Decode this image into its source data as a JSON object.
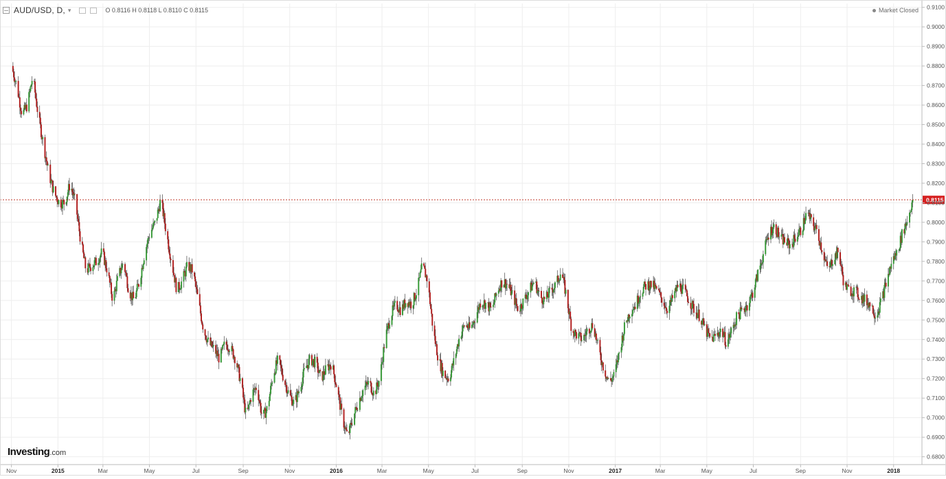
{
  "header": {
    "symbol": "AUD/USD, D,",
    "dropdown": "▾",
    "ohlc": "O 0.8116 H 0.8118 L 0.8110 C 0.8115"
  },
  "status": {
    "market": "Market Closed"
  },
  "logo": {
    "brand": "Investing",
    "suffix": ".com"
  },
  "price_tag": "0.8115",
  "colors": {
    "up": "#3a9b3a",
    "down": "#b22222",
    "wick": "#444444",
    "price_line": "#c0392b",
    "price_tag_bg": "#d62020",
    "grid": "#eeeeee",
    "axis": "#bbbbbb"
  },
  "chart_data": {
    "type": "candlestick",
    "title": "AUD/USD, D,",
    "ylim": [
      0.676,
      0.912
    ],
    "y_scale_side": "right",
    "y_ticks": [
      "0.9100",
      "0.9000",
      "0.8900",
      "0.8800",
      "0.8700",
      "0.8600",
      "0.8500",
      "0.8400",
      "0.8300",
      "0.8200",
      "0.8100",
      "0.8000",
      "0.7900",
      "0.7800",
      "0.7700",
      "0.7600",
      "0.7500",
      "0.7400",
      "0.7300",
      "0.7200",
      "0.7100",
      "0.7000",
      "0.6900",
      "0.6800"
    ],
    "x_ticks": [
      "Nov",
      "2015",
      "Mar",
      "May",
      "Jul",
      "Sep",
      "Nov",
      "2016",
      "Mar",
      "May",
      "Jul",
      "Sep",
      "Nov",
      "2017",
      "Mar",
      "May",
      "Jul",
      "Sep",
      "Nov",
      "2018"
    ],
    "grid": true,
    "last_price": 0.8115,
    "path_points": [
      [
        "2014-11-01",
        0.88
      ],
      [
        "2014-11-08",
        0.87
      ],
      [
        "2014-11-15",
        0.855
      ],
      [
        "2014-11-22",
        0.86
      ],
      [
        "2014-11-29",
        0.875
      ],
      [
        "2014-12-06",
        0.855
      ],
      [
        "2014-12-13",
        0.84
      ],
      [
        "2014-12-20",
        0.825
      ],
      [
        "2014-12-27",
        0.815
      ],
      [
        "2015-01-03",
        0.81
      ],
      [
        "2015-01-10",
        0.81
      ],
      [
        "2015-01-17",
        0.82
      ],
      [
        "2015-01-24",
        0.81
      ],
      [
        "2015-01-31",
        0.79
      ],
      [
        "2015-02-07",
        0.775
      ],
      [
        "2015-02-14",
        0.778
      ],
      [
        "2015-02-21",
        0.78
      ],
      [
        "2015-02-28",
        0.785
      ],
      [
        "2015-03-07",
        0.775
      ],
      [
        "2015-03-14",
        0.76
      ],
      [
        "2015-03-21",
        0.772
      ],
      [
        "2015-03-28",
        0.78
      ],
      [
        "2015-04-04",
        0.765
      ],
      [
        "2015-04-11",
        0.76
      ],
      [
        "2015-04-18",
        0.77
      ],
      [
        "2015-04-25",
        0.785
      ],
      [
        "2015-05-02",
        0.795
      ],
      [
        "2015-05-09",
        0.8
      ],
      [
        "2015-05-16",
        0.812
      ],
      [
        "2015-05-23",
        0.795
      ],
      [
        "2015-05-30",
        0.78
      ],
      [
        "2015-06-06",
        0.765
      ],
      [
        "2015-06-13",
        0.77
      ],
      [
        "2015-06-20",
        0.778
      ],
      [
        "2015-06-27",
        0.775
      ],
      [
        "2015-07-04",
        0.76
      ],
      [
        "2015-07-11",
        0.745
      ],
      [
        "2015-07-18",
        0.738
      ],
      [
        "2015-07-25",
        0.735
      ],
      [
        "2015-08-01",
        0.73
      ],
      [
        "2015-08-08",
        0.738
      ],
      [
        "2015-08-15",
        0.736
      ],
      [
        "2015-08-22",
        0.73
      ],
      [
        "2015-08-29",
        0.718
      ],
      [
        "2015-09-05",
        0.7
      ],
      [
        "2015-09-12",
        0.712
      ],
      [
        "2015-09-19",
        0.716
      ],
      [
        "2015-09-26",
        0.7
      ],
      [
        "2015-10-03",
        0.705
      ],
      [
        "2015-10-10",
        0.722
      ],
      [
        "2015-10-17",
        0.73
      ],
      [
        "2015-10-24",
        0.72
      ],
      [
        "2015-10-31",
        0.712
      ],
      [
        "2015-11-07",
        0.707
      ],
      [
        "2015-11-14",
        0.715
      ],
      [
        "2015-11-21",
        0.725
      ],
      [
        "2015-11-28",
        0.73
      ],
      [
        "2015-12-05",
        0.728
      ],
      [
        "2015-12-12",
        0.72
      ],
      [
        "2015-12-19",
        0.725
      ],
      [
        "2015-12-26",
        0.728
      ],
      [
        "2016-01-02",
        0.715
      ],
      [
        "2016-01-09",
        0.7
      ],
      [
        "2016-01-16",
        0.69
      ],
      [
        "2016-01-23",
        0.7
      ],
      [
        "2016-01-30",
        0.708
      ],
      [
        "2016-02-06",
        0.715
      ],
      [
        "2016-02-13",
        0.718
      ],
      [
        "2016-02-20",
        0.712
      ],
      [
        "2016-02-27",
        0.72
      ],
      [
        "2016-03-05",
        0.74
      ],
      [
        "2016-03-12",
        0.752
      ],
      [
        "2016-03-19",
        0.758
      ],
      [
        "2016-03-26",
        0.755
      ],
      [
        "2016-04-02",
        0.76
      ],
      [
        "2016-04-09",
        0.758
      ],
      [
        "2016-04-16",
        0.765
      ],
      [
        "2016-04-23",
        0.778
      ],
      [
        "2016-04-30",
        0.77
      ],
      [
        "2016-05-07",
        0.745
      ],
      [
        "2016-05-14",
        0.73
      ],
      [
        "2016-05-21",
        0.722
      ],
      [
        "2016-05-28",
        0.72
      ],
      [
        "2016-06-04",
        0.73
      ],
      [
        "2016-06-11",
        0.742
      ],
      [
        "2016-06-18",
        0.748
      ],
      [
        "2016-06-25",
        0.745
      ],
      [
        "2016-07-02",
        0.752
      ],
      [
        "2016-07-09",
        0.76
      ],
      [
        "2016-07-16",
        0.758
      ],
      [
        "2016-07-23",
        0.755
      ],
      [
        "2016-07-30",
        0.765
      ],
      [
        "2016-08-06",
        0.77
      ],
      [
        "2016-08-13",
        0.768
      ],
      [
        "2016-08-20",
        0.762
      ],
      [
        "2016-08-27",
        0.755
      ],
      [
        "2016-09-03",
        0.76
      ],
      [
        "2016-09-10",
        0.765
      ],
      [
        "2016-09-17",
        0.77
      ],
      [
        "2016-09-24",
        0.762
      ],
      [
        "2016-10-01",
        0.76
      ],
      [
        "2016-10-08",
        0.765
      ],
      [
        "2016-10-15",
        0.768
      ],
      [
        "2016-10-22",
        0.775
      ],
      [
        "2016-10-29",
        0.762
      ],
      [
        "2016-11-05",
        0.745
      ],
      [
        "2016-11-12",
        0.742
      ],
      [
        "2016-11-19",
        0.74
      ],
      [
        "2016-11-26",
        0.745
      ],
      [
        "2016-12-03",
        0.748
      ],
      [
        "2016-12-10",
        0.735
      ],
      [
        "2016-12-17",
        0.725
      ],
      [
        "2016-12-24",
        0.718
      ],
      [
        "2016-12-31",
        0.722
      ],
      [
        "2017-01-07",
        0.735
      ],
      [
        "2017-01-14",
        0.748
      ],
      [
        "2017-01-21",
        0.755
      ],
      [
        "2017-01-28",
        0.758
      ],
      [
        "2017-02-04",
        0.765
      ],
      [
        "2017-02-11",
        0.768
      ],
      [
        "2017-02-18",
        0.768
      ],
      [
        "2017-02-25",
        0.765
      ],
      [
        "2017-03-04",
        0.76
      ],
      [
        "2017-03-11",
        0.755
      ],
      [
        "2017-03-18",
        0.762
      ],
      [
        "2017-03-25",
        0.768
      ],
      [
        "2017-04-01",
        0.765
      ],
      [
        "2017-04-08",
        0.76
      ],
      [
        "2017-04-15",
        0.755
      ],
      [
        "2017-04-22",
        0.752
      ],
      [
        "2017-04-29",
        0.745
      ],
      [
        "2017-05-06",
        0.74
      ],
      [
        "2017-05-13",
        0.742
      ],
      [
        "2017-05-20",
        0.745
      ],
      [
        "2017-05-27",
        0.738
      ],
      [
        "2017-06-03",
        0.745
      ],
      [
        "2017-06-10",
        0.752
      ],
      [
        "2017-06-17",
        0.755
      ],
      [
        "2017-06-24",
        0.758
      ],
      [
        "2017-07-01",
        0.765
      ],
      [
        "2017-07-08",
        0.775
      ],
      [
        "2017-07-15",
        0.785
      ],
      [
        "2017-07-22",
        0.795
      ],
      [
        "2017-07-29",
        0.798
      ],
      [
        "2017-08-05",
        0.792
      ],
      [
        "2017-08-12",
        0.79
      ],
      [
        "2017-08-19",
        0.788
      ],
      [
        "2017-08-26",
        0.793
      ],
      [
        "2017-09-02",
        0.796
      ],
      [
        "2017-09-09",
        0.805
      ],
      [
        "2017-09-16",
        0.8
      ],
      [
        "2017-09-23",
        0.795
      ],
      [
        "2017-09-30",
        0.785
      ],
      [
        "2017-10-07",
        0.775
      ],
      [
        "2017-10-14",
        0.782
      ],
      [
        "2017-10-21",
        0.785
      ],
      [
        "2017-10-28",
        0.768
      ],
      [
        "2017-11-04",
        0.765
      ],
      [
        "2017-11-11",
        0.765
      ],
      [
        "2017-11-18",
        0.762
      ],
      [
        "2017-11-25",
        0.76
      ],
      [
        "2017-12-02",
        0.758
      ],
      [
        "2017-12-09",
        0.752
      ],
      [
        "2017-12-16",
        0.76
      ],
      [
        "2017-12-23",
        0.77
      ],
      [
        "2017-12-30",
        0.78
      ],
      [
        "2018-01-06",
        0.785
      ],
      [
        "2018-01-13",
        0.795
      ],
      [
        "2018-01-20",
        0.802
      ],
      [
        "2018-01-26",
        0.8115
      ]
    ]
  }
}
